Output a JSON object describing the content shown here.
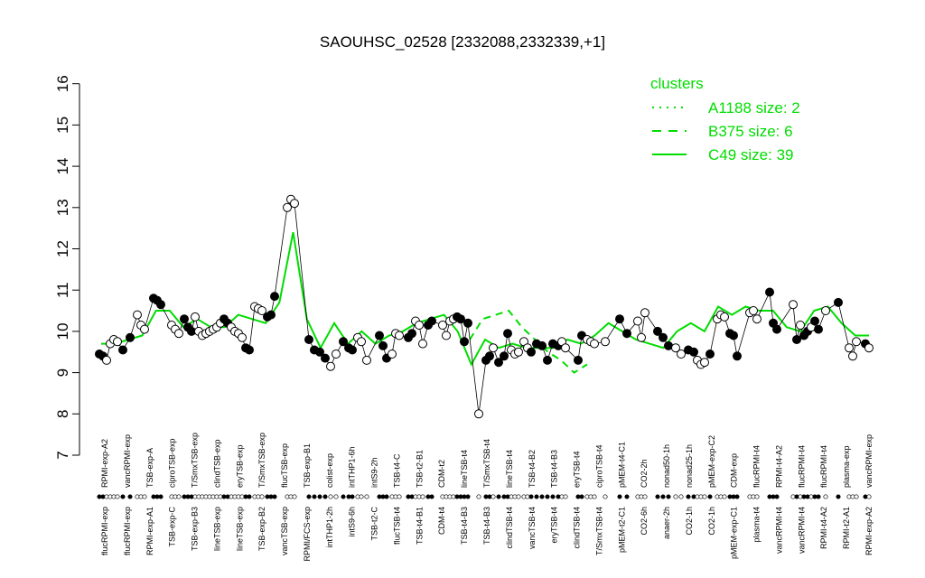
{
  "chart_data": {
    "type": "line",
    "title": "SAOUHSC_02528 [2332088,2332339,+1]",
    "xlabel": "",
    "ylabel": "",
    "ylim": [
      7,
      16
    ],
    "y_ticks": [
      7,
      8,
      9,
      10,
      11,
      12,
      13,
      14,
      15,
      16
    ],
    "grid": false,
    "legend_position": "top-right",
    "legend": {
      "title": "clusters",
      "entries": [
        {
          "label": "A1188 size: 2",
          "style": "dotted"
        },
        {
          "label": "B375 size: 6",
          "style": "dashed"
        },
        {
          "label": "C49 size: 39",
          "style": "solid"
        }
      ]
    },
    "colors": {
      "cluster_line": "#00dd00",
      "points": "#000000",
      "open_points": "#ffffff"
    },
    "x_labels_upper": [
      "RPMI-exp-A2",
      "vancRPMI-exp",
      "TSB-exp-A",
      "ciproTSB-exp",
      "T/SmxTSB-exp",
      "clindTSB-exp",
      "eryTSB-exp",
      "T/SmxTSB-exp",
      "flucTSB-exp",
      "TSB-exp-B1",
      "colist-exp",
      "intTHP1-6h",
      "intS9-2h",
      "TSB-t4-C",
      "TSB-t2-B1",
      "CDM-t2",
      "lineTSB-t4",
      "T/SmxTSB-t4",
      "lineTSB-t4",
      "TSB-t4-B2",
      "TSB-t4-B3",
      "eryTSB-t4",
      "ciproTSB-t4",
      "pMEM-t4-C1",
      "CO2-2h",
      "nonad50-1h",
      "nonad25-1h",
      "pMEM-exp-C2",
      "CDM-exp",
      "flucRPMI-t4",
      "RPMI-t4-A2",
      "flucRPMI-t4",
      "flucRPMI-t4",
      "plasma-exp",
      "vancRPMI-exp"
    ],
    "x_labels_lower": [
      "flucRPMI-exp",
      "flucRPMI-exp",
      "RPMI-exp-A1",
      "TSB-exp-C",
      "TSB-exp-B3",
      "lineTSB-exp",
      "lineTSB-exp",
      "TSB-exp-B2",
      "vancTSB-exp",
      "RPMI/FCS-exp",
      "intTHP1-2h",
      "intS9-6h",
      "TSB-t2-C",
      "flucTSB-t4",
      "TSB-t4-B1",
      "CDM-t4",
      "TSB-t4-B3",
      "TSB-t4-B3",
      "clindTSB-t4",
      "vancTSB-t4",
      "eryTSB-t4",
      "clindTSB-t4",
      "T/SmxTSB-t4",
      "pMEM-t2-C1",
      "CO2-6h",
      "anaer-2h",
      "CO2-1h",
      "CO2-1h",
      "pMEM-exp-C1",
      "plasma-t4",
      "vancRPMI-t4",
      "vancRPMI-t4",
      "RPMI-t4-A2",
      "RPMI-t2-A1",
      "RPMI-exp-A2"
    ],
    "cluster_line": [
      9.7,
      9.7,
      9.8,
      9.9,
      10.5,
      10.5,
      10.1,
      10.3,
      10.1,
      10.1,
      10.4,
      10.3,
      10.2,
      10.7,
      12.4,
      10.3,
      9.6,
      10.2,
      9.7,
      10.0,
      9.7,
      9.9,
      10.0,
      10.2,
      10.3,
      10.4,
      10.0,
      9.2,
      9.8,
      9.6,
      9.7,
      9.6,
      9.6,
      9.6,
      9.8,
      9.7,
      9.9,
      10.2,
      10.0,
      9.8,
      9.7,
      9.6,
      10.0,
      10.2,
      10.0,
      10.6,
      10.4,
      10.6,
      10.5,
      10.5,
      10.1,
      10.0,
      10.5,
      10.6,
      10.2,
      9.9,
      9.9
    ],
    "cluster_dashed": [
      9.8,
      10.3,
      10.4,
      10.5,
      10.1,
      9.8,
      9.5,
      9.3,
      9.0,
      9.2
    ],
    "points": [
      {
        "x": 110,
        "y": 9.45,
        "filled": true
      },
      {
        "x": 114,
        "y": 9.4,
        "filled": true
      },
      {
        "x": 118,
        "y": 9.3,
        "filled": false
      },
      {
        "x": 122,
        "y": 9.7,
        "filled": false
      },
      {
        "x": 126,
        "y": 9.8,
        "filled": false
      },
      {
        "x": 130,
        "y": 9.75,
        "filled": false
      },
      {
        "x": 136,
        "y": 9.55,
        "filled": true
      },
      {
        "x": 144,
        "y": 9.85,
        "filled": true
      },
      {
        "x": 152,
        "y": 10.4,
        "filled": false
      },
      {
        "x": 156,
        "y": 10.15,
        "filled": false
      },
      {
        "x": 160,
        "y": 10.05,
        "filled": false
      },
      {
        "x": 170,
        "y": 10.8,
        "filled": true
      },
      {
        "x": 174,
        "y": 10.75,
        "filled": true
      },
      {
        "x": 178,
        "y": 10.65,
        "filled": true
      },
      {
        "x": 190,
        "y": 10.15,
        "filled": false
      },
      {
        "x": 194,
        "y": 10.05,
        "filled": false
      },
      {
        "x": 198,
        "y": 9.95,
        "filled": false
      },
      {
        "x": 204,
        "y": 10.3,
        "filled": true
      },
      {
        "x": 208,
        "y": 10.1,
        "filled": true
      },
      {
        "x": 212,
        "y": 10.0,
        "filled": true
      },
      {
        "x": 216,
        "y": 10.35,
        "filled": false
      },
      {
        "x": 220,
        "y": 10.0,
        "filled": false
      },
      {
        "x": 224,
        "y": 9.9,
        "filled": false
      },
      {
        "x": 228,
        "y": 9.95,
        "filled": false
      },
      {
        "x": 232,
        "y": 10.0,
        "filled": false
      },
      {
        "x": 236,
        "y": 10.05,
        "filled": false
      },
      {
        "x": 240,
        "y": 10.1,
        "filled": false
      },
      {
        "x": 244,
        "y": 10.2,
        "filled": false
      },
      {
        "x": 248,
        "y": 10.3,
        "filled": true
      },
      {
        "x": 252,
        "y": 10.2,
        "filled": true
      },
      {
        "x": 256,
        "y": 10.1,
        "filled": false
      },
      {
        "x": 260,
        "y": 10.0,
        "filled": false
      },
      {
        "x": 264,
        "y": 9.95,
        "filled": false
      },
      {
        "x": 268,
        "y": 9.85,
        "filled": false
      },
      {
        "x": 272,
        "y": 9.6,
        "filled": true
      },
      {
        "x": 276,
        "y": 9.55,
        "filled": true
      },
      {
        "x": 282,
        "y": 10.6,
        "filled": false
      },
      {
        "x": 286,
        "y": 10.55,
        "filled": false
      },
      {
        "x": 290,
        "y": 10.5,
        "filled": false
      },
      {
        "x": 296,
        "y": 10.35,
        "filled": true
      },
      {
        "x": 300,
        "y": 10.4,
        "filled": true
      },
      {
        "x": 304,
        "y": 10.85,
        "filled": true
      },
      {
        "x": 318,
        "y": 13.0,
        "filled": false
      },
      {
        "x": 322,
        "y": 13.2,
        "filled": false
      },
      {
        "x": 326,
        "y": 13.1,
        "filled": false
      },
      {
        "x": 342,
        "y": 9.8,
        "filled": true
      },
      {
        "x": 348,
        "y": 9.55,
        "filled": true
      },
      {
        "x": 354,
        "y": 9.5,
        "filled": true
      },
      {
        "x": 360,
        "y": 9.35,
        "filled": true
      },
      {
        "x": 366,
        "y": 9.15,
        "filled": false
      },
      {
        "x": 372,
        "y": 9.45,
        "filled": false
      },
      {
        "x": 380,
        "y": 9.75,
        "filled": true
      },
      {
        "x": 386,
        "y": 9.6,
        "filled": true
      },
      {
        "x": 390,
        "y": 9.55,
        "filled": true
      },
      {
        "x": 396,
        "y": 9.85,
        "filled": false
      },
      {
        "x": 400,
        "y": 9.75,
        "filled": false
      },
      {
        "x": 406,
        "y": 9.3,
        "filled": false
      },
      {
        "x": 420,
        "y": 9.9,
        "filled": true
      },
      {
        "x": 424,
        "y": 9.65,
        "filled": true
      },
      {
        "x": 428,
        "y": 9.35,
        "filled": true
      },
      {
        "x": 434,
        "y": 9.45,
        "filled": false
      },
      {
        "x": 438,
        "y": 9.95,
        "filled": false
      },
      {
        "x": 442,
        "y": 9.9,
        "filled": false
      },
      {
        "x": 452,
        "y": 9.85,
        "filled": true
      },
      {
        "x": 456,
        "y": 9.95,
        "filled": true
      },
      {
        "x": 460,
        "y": 10.25,
        "filled": false
      },
      {
        "x": 464,
        "y": 10.15,
        "filled": false
      },
      {
        "x": 468,
        "y": 9.7,
        "filled": false
      },
      {
        "x": 474,
        "y": 10.15,
        "filled": true
      },
      {
        "x": 478,
        "y": 10.25,
        "filled": true
      },
      {
        "x": 490,
        "y": 10.15,
        "filled": false
      },
      {
        "x": 494,
        "y": 9.9,
        "filled": false
      },
      {
        "x": 498,
        "y": 10.25,
        "filled": false
      },
      {
        "x": 502,
        "y": 10.3,
        "filled": false
      },
      {
        "x": 506,
        "y": 10.35,
        "filled": true
      },
      {
        "x": 510,
        "y": 10.3,
        "filled": true
      },
      {
        "x": 514,
        "y": 9.75,
        "filled": true
      },
      {
        "x": 518,
        "y": 10.2,
        "filled": true
      },
      {
        "x": 530,
        "y": 8.0,
        "filled": false
      },
      {
        "x": 538,
        "y": 9.3,
        "filled": true
      },
      {
        "x": 542,
        "y": 9.4,
        "filled": true
      },
      {
        "x": 546,
        "y": 9.6,
        "filled": false
      },
      {
        "x": 552,
        "y": 9.25,
        "filled": true
      },
      {
        "x": 558,
        "y": 9.4,
        "filled": true
      },
      {
        "x": 562,
        "y": 9.95,
        "filled": true
      },
      {
        "x": 566,
        "y": 9.55,
        "filled": false
      },
      {
        "x": 570,
        "y": 9.45,
        "filled": false
      },
      {
        "x": 574,
        "y": 9.5,
        "filled": false
      },
      {
        "x": 580,
        "y": 9.75,
        "filled": false
      },
      {
        "x": 584,
        "y": 9.6,
        "filled": false
      },
      {
        "x": 588,
        "y": 9.5,
        "filled": true
      },
      {
        "x": 594,
        "y": 9.7,
        "filled": true
      },
      {
        "x": 600,
        "y": 9.65,
        "filled": true
      },
      {
        "x": 606,
        "y": 9.3,
        "filled": true
      },
      {
        "x": 612,
        "y": 9.7,
        "filled": true
      },
      {
        "x": 618,
        "y": 9.65,
        "filled": true
      },
      {
        "x": 622,
        "y": 9.75,
        "filled": false
      },
      {
        "x": 626,
        "y": 9.6,
        "filled": false
      },
      {
        "x": 640,
        "y": 9.3,
        "filled": true
      },
      {
        "x": 644,
        "y": 9.9,
        "filled": true
      },
      {
        "x": 650,
        "y": 9.8,
        "filled": false
      },
      {
        "x": 654,
        "y": 9.75,
        "filled": false
      },
      {
        "x": 658,
        "y": 9.7,
        "filled": false
      },
      {
        "x": 670,
        "y": 9.75,
        "filled": false
      },
      {
        "x": 686,
        "y": 10.3,
        "filled": true
      },
      {
        "x": 694,
        "y": 9.95,
        "filled": true
      },
      {
        "x": 706,
        "y": 10.25,
        "filled": false
      },
      {
        "x": 710,
        "y": 9.85,
        "filled": false
      },
      {
        "x": 714,
        "y": 10.45,
        "filled": false
      },
      {
        "x": 728,
        "y": 10.0,
        "filled": true
      },
      {
        "x": 734,
        "y": 9.85,
        "filled": true
      },
      {
        "x": 740,
        "y": 9.65,
        "filled": true
      },
      {
        "x": 748,
        "y": 9.6,
        "filled": false
      },
      {
        "x": 754,
        "y": 9.45,
        "filled": false
      },
      {
        "x": 762,
        "y": 9.55,
        "filled": true
      },
      {
        "x": 768,
        "y": 9.5,
        "filled": true
      },
      {
        "x": 772,
        "y": 9.3,
        "filled": false
      },
      {
        "x": 776,
        "y": 9.2,
        "filled": false
      },
      {
        "x": 780,
        "y": 9.25,
        "filled": false
      },
      {
        "x": 786,
        "y": 9.45,
        "filled": true
      },
      {
        "x": 794,
        "y": 10.3,
        "filled": false
      },
      {
        "x": 798,
        "y": 10.4,
        "filled": false
      },
      {
        "x": 802,
        "y": 10.35,
        "filled": false
      },
      {
        "x": 808,
        "y": 9.95,
        "filled": true
      },
      {
        "x": 812,
        "y": 9.9,
        "filled": true
      },
      {
        "x": 816,
        "y": 9.4,
        "filled": true
      },
      {
        "x": 830,
        "y": 10.45,
        "filled": false
      },
      {
        "x": 834,
        "y": 10.5,
        "filled": false
      },
      {
        "x": 838,
        "y": 10.3,
        "filled": false
      },
      {
        "x": 852,
        "y": 10.95,
        "filled": true
      },
      {
        "x": 856,
        "y": 10.2,
        "filled": true
      },
      {
        "x": 860,
        "y": 10.05,
        "filled": true
      },
      {
        "x": 878,
        "y": 10.65,
        "filled": false
      },
      {
        "x": 882,
        "y": 9.8,
        "filled": true
      },
      {
        "x": 886,
        "y": 10.15,
        "filled": false
      },
      {
        "x": 890,
        "y": 9.9,
        "filled": true
      },
      {
        "x": 894,
        "y": 10.0,
        "filled": true
      },
      {
        "x": 898,
        "y": 10.1,
        "filled": false
      },
      {
        "x": 902,
        "y": 10.25,
        "filled": true
      },
      {
        "x": 906,
        "y": 10.05,
        "filled": true
      },
      {
        "x": 914,
        "y": 10.5,
        "filled": false
      },
      {
        "x": 928,
        "y": 10.7,
        "filled": true
      },
      {
        "x": 940,
        "y": 9.6,
        "filled": false
      },
      {
        "x": 944,
        "y": 9.4,
        "filled": false
      },
      {
        "x": 948,
        "y": 9.75,
        "filled": false
      },
      {
        "x": 958,
        "y": 9.7,
        "filled": true
      },
      {
        "x": 962,
        "y": 9.6,
        "filled": false
      }
    ]
  }
}
